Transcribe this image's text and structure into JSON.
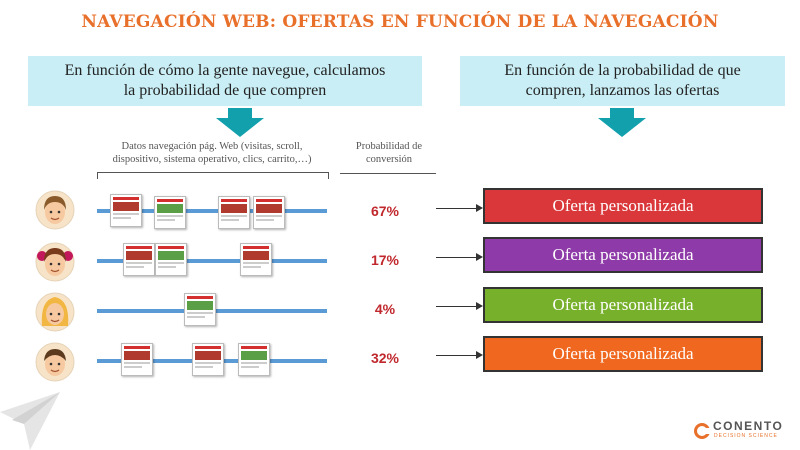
{
  "title": "NAVEGACIÓN WEB: OFERTAS EN FUNCIÓN DE LA NAVEGACIÓN",
  "left_box": {
    "line1": "En función de cómo la gente navegue, calculamos",
    "line2": "la probabilidad de que compren"
  },
  "right_box": {
    "line1": "En función de la probabilidad de que",
    "line2": "compren, lanzamos las ofertas"
  },
  "nav_header": {
    "line1": "Datos navegación pág. Web (visitas, scroll,",
    "line2": "dispositivo, sistema operativo, clics, carrito,…)"
  },
  "prob_header": {
    "line1": "Probabilidad de",
    "line2": "conversión"
  },
  "rows": [
    {
      "probability": "67%",
      "offer": "Oferta personalizada",
      "offer_color": "#d9373a"
    },
    {
      "probability": "17%",
      "offer": "Oferta personalizada",
      "offer_color": "#8e3aa8"
    },
    {
      "probability": "4%",
      "offer": "Oferta personalizada",
      "offer_color": "#77b02b"
    },
    {
      "probability": "32%",
      "offer": "Oferta personalizada",
      "offer_color": "#f0671f"
    }
  ],
  "logo": {
    "name": "CONENTO",
    "subtitle": "DECISION SCIENCE"
  },
  "colors": {
    "title": "#e8702a",
    "info_box": "#c9eef5",
    "arrow_teal": "#13a0ad",
    "timeline": "#5b9bd5",
    "percent": "#c0282d"
  }
}
